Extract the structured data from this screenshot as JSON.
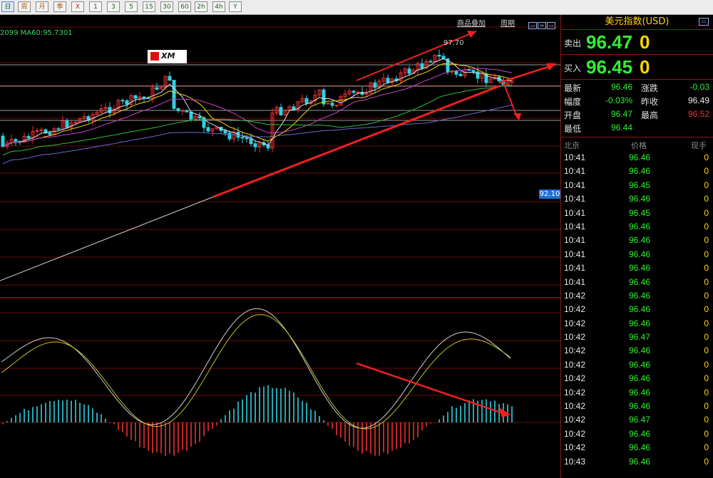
{
  "toolbar": {
    "buttons": [
      "日",
      "周",
      "月",
      "季",
      "X",
      "1",
      "3",
      "5",
      "15",
      "30",
      "60",
      "2h",
      "4h",
      "Y"
    ]
  },
  "chart": {
    "header_links": [
      "商品叠加",
      "周期"
    ],
    "ma_legend": "2099 MA60:95.7301",
    "price_label": "92.10",
    "peak_label": "97.70",
    "logo_text": "XM"
  },
  "panel": {
    "title": "美元指数(USD)",
    "sell": {
      "label": "卖出",
      "price": "96.47",
      "last": "0"
    },
    "buy": {
      "label": "买入",
      "price": "96.45",
      "last": "0"
    },
    "stats": {
      "latest_label": "最新",
      "latest": "96.46",
      "change_label": "涨跌",
      "change": "-0.03",
      "range_label": "幅度",
      "range": "-0.03%",
      "prev_label": "昨收",
      "prev": "96.49",
      "open_label": "开盘",
      "open": "96.47",
      "high_label": "最高",
      "high": "96.52",
      "low_label": "最低",
      "low": "96.44"
    },
    "ticks_header": {
      "time": "北京",
      "price": "价格",
      "qty": "现手"
    },
    "ticks": [
      {
        "time": "10:41",
        "price": "96.46",
        "qty": "0"
      },
      {
        "time": "10:41",
        "price": "96.46",
        "qty": "0"
      },
      {
        "time": "10:41",
        "price": "96.45",
        "qty": "0"
      },
      {
        "time": "10:41",
        "price": "96.46",
        "qty": "0"
      },
      {
        "time": "10:41",
        "price": "96.45",
        "qty": "0"
      },
      {
        "time": "10:41",
        "price": "96.46",
        "qty": "0"
      },
      {
        "time": "10:41",
        "price": "96.46",
        "qty": "0"
      },
      {
        "time": "10:41",
        "price": "96.46",
        "qty": "0"
      },
      {
        "time": "10:41",
        "price": "96.46",
        "qty": "0"
      },
      {
        "time": "10:41",
        "price": "96.46",
        "qty": "0"
      },
      {
        "time": "10:42",
        "price": "96.46",
        "qty": "0"
      },
      {
        "time": "10:42",
        "price": "96.46",
        "qty": "0"
      },
      {
        "time": "10:42",
        "price": "96.46",
        "qty": "0"
      },
      {
        "time": "10:42",
        "price": "96.47",
        "qty": "0"
      },
      {
        "time": "10:42",
        "price": "96.46",
        "qty": "0"
      },
      {
        "time": "10:42",
        "price": "96.46",
        "qty": "0"
      },
      {
        "time": "10:42",
        "price": "96.46",
        "qty": "0"
      },
      {
        "time": "10:42",
        "price": "96.46",
        "qty": "0"
      },
      {
        "time": "10:42",
        "price": "96.46",
        "qty": "0"
      },
      {
        "time": "10:42",
        "price": "96.47",
        "qty": "0"
      },
      {
        "time": "10:42",
        "price": "96.46",
        "qty": "0"
      },
      {
        "time": "10:42",
        "price": "96.46",
        "qty": "0"
      },
      {
        "time": "10:43",
        "price": "96.46",
        "qty": "0"
      }
    ]
  },
  "colors": {
    "up": "#f03030",
    "down": "#30d0e0",
    "accent": "#ffd700",
    "green": "#30f030",
    "grid": "#6a0a0a"
  }
}
